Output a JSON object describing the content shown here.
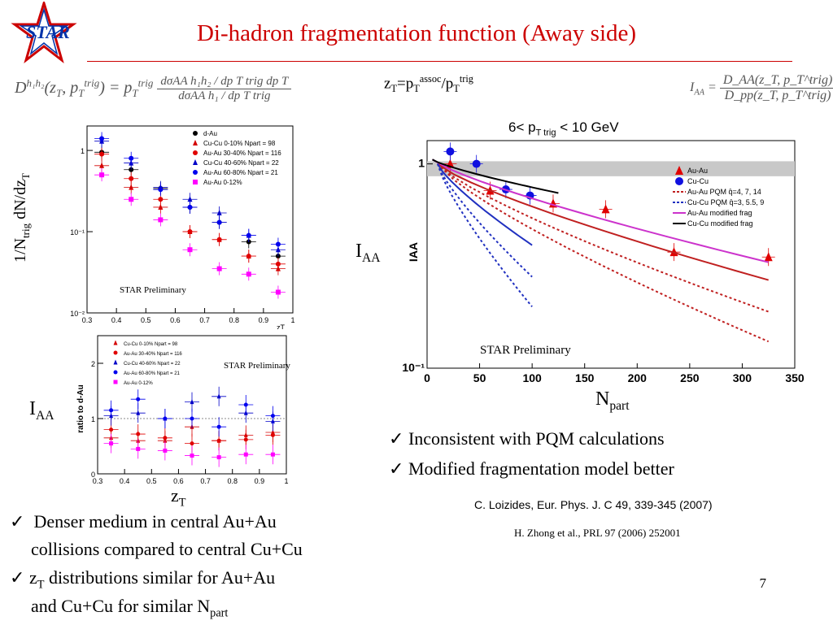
{
  "slide": {
    "title": "Di-hadron fragmentation function (Away side)",
    "logo_text": "STAR",
    "page_number": "7"
  },
  "equations": {
    "D_lhs": "D",
    "D_lhs_sup": "h₁h₂",
    "D_args": "(z",
    "D_args_sub": "T",
    "D_args2": ", p",
    "D_args_sub2": "T",
    "D_args_sup2": "trig",
    "D_args3": ") = p",
    "D_mid_sub": "T",
    "D_mid_sup": "trig",
    "D_num": "dσAA h₁h₂ / dp T trig dp T",
    "D_den": "dσAA h₁ / dp T trig",
    "zT_def": "z",
    "zT_def_sub": "T",
    "zT_def2": "=p",
    "zT_def_sub2": "T",
    "zT_def_sup2": "assoc",
    "zT_def3": "/p",
    "zT_def_sub3": "T",
    "zT_def_sup3": "trig",
    "IAA_lhs": "I",
    "IAA_lhs_sub": "AA",
    "IAA_num": "D_AA(z_T, p_T^trig)",
    "IAA_den": "D_pp(z_T, p_T^trig)"
  },
  "labels": {
    "left_ylabel_main": "1/N",
    "left_ylabel_sub": "trig",
    "left_ylabel_rest": " dN/dz",
    "left_ylabel_sub2": "T",
    "left_iaa": "I",
    "left_iaa_sub": "AA",
    "left_zt": "z",
    "left_zt_sub": "T",
    "right_iaa": "I",
    "right_iaa_sub": "AA",
    "right_npart": "N",
    "right_npart_sub": "part",
    "ptrig_range": "6< p",
    "ptrig_range_sub": "T trig",
    "ptrig_range_rest": " < 10 GeV"
  },
  "bullets": {
    "check": "✓",
    "right1": "Inconsistent with PQM calculations",
    "right2": "Modified fragmentation model better",
    "left1a": "Denser medium in central Au+Au",
    "left1b": "collisions compared to central Cu+Cu",
    "left2a_z": "z",
    "left2a_sub": "T",
    "left2a_rest": " distributions similar for Au+Au",
    "left2b": "and Cu+Cu for similar N",
    "left2b_sub": "part"
  },
  "references": {
    "ref1": "C. Loizides, Eur. Phys. J. C 49, 339-345 (2007)",
    "ref2": "H. Zhong et al.,  PRL 97 (2006) 252001"
  },
  "chart_data": [
    {
      "type": "scatter",
      "ylabel": "1/Ntrig dN/dzT",
      "xlabel": "zT",
      "xlim": [
        0.3,
        1
      ],
      "ylim": [
        0.01,
        2
      ],
      "yscale": "log",
      "x_ticks": [
        "0.3",
        "0.4",
        "0.5",
        "0.6",
        "0.7",
        "0.8",
        "0.9",
        "1"
      ],
      "y_ticks": [
        "10⁻²",
        "10⁻¹",
        "1"
      ],
      "annotation": "STAR Preliminary",
      "legend_position": "top-right",
      "series": [
        {
          "name": "d-Au",
          "color": "#000000",
          "marker": "circle",
          "x": [
            0.35,
            0.45,
            0.55,
            0.65,
            0.75,
            0.85,
            0.95
          ],
          "y": [
            0.95,
            0.58,
            0.34,
            0.2,
            0.13,
            0.075,
            0.05
          ]
        },
        {
          "name": "Cu-Cu 0-10% Npart = 98",
          "color": "#d40000",
          "marker": "triangle",
          "x": [
            0.35,
            0.45,
            0.55,
            0.65,
            0.75,
            0.85,
            0.95
          ],
          "y": [
            0.65,
            0.35,
            0.2,
            0.1,
            0.08,
            0.05,
            0.035
          ]
        },
        {
          "name": "Au-Au 30-40% Npart = 116",
          "color": "#e00000",
          "marker": "circle",
          "x": [
            0.35,
            0.45,
            0.55,
            0.65,
            0.75,
            0.85,
            0.95
          ],
          "y": [
            0.9,
            0.45,
            0.25,
            0.1,
            0.08,
            0.05,
            0.04
          ]
        },
        {
          "name": "Cu-Cu 40-60% Npart = 22",
          "color": "#0000c8",
          "marker": "triangle",
          "x": [
            0.35,
            0.45,
            0.55,
            0.65,
            0.75,
            0.85,
            0.95
          ],
          "y": [
            1.3,
            0.7,
            0.35,
            0.25,
            0.17,
            0.09,
            0.06
          ]
        },
        {
          "name": "Au-Au 60-80% Npart = 21",
          "color": "#0000ee",
          "marker": "circle",
          "x": [
            0.35,
            0.45,
            0.55,
            0.65,
            0.75,
            0.85,
            0.95
          ],
          "y": [
            1.4,
            0.8,
            0.33,
            0.2,
            0.13,
            0.09,
            0.07
          ]
        },
        {
          "name": "Au-Au 0-12%",
          "color": "#ff00ff",
          "marker": "square",
          "x": [
            0.35,
            0.45,
            0.55,
            0.65,
            0.75,
            0.85,
            0.95
          ],
          "y": [
            0.5,
            0.25,
            0.14,
            0.06,
            0.035,
            0.03,
            0.018
          ]
        }
      ]
    },
    {
      "type": "scatter",
      "ylabel": "ratio to d-Au",
      "xlabel": "zT",
      "xlim": [
        0.3,
        1
      ],
      "ylim": [
        0,
        2.5
      ],
      "x_ticks": [
        "0.3",
        "0.4",
        "0.5",
        "0.6",
        "0.7",
        "0.8",
        "0.9",
        "1"
      ],
      "y_ticks": [
        "0",
        "1",
        "2"
      ],
      "annotation": "STAR Preliminary",
      "legend_position": "top-left",
      "series": [
        {
          "name": "Cu-Cu 0-10% Npart = 98",
          "color": "#d40000",
          "marker": "triangle",
          "x": [
            0.35,
            0.45,
            0.55,
            0.65,
            0.75,
            0.85,
            0.95
          ],
          "y": [
            0.65,
            0.6,
            0.6,
            0.85,
            0.6,
            0.7,
            0.75
          ]
        },
        {
          "name": "Au-Au 30-40% Npart = 116",
          "color": "#e00000",
          "marker": "circle",
          "x": [
            0.35,
            0.45,
            0.55,
            0.65,
            0.75,
            0.85,
            0.95
          ],
          "y": [
            0.8,
            0.72,
            0.65,
            0.55,
            0.6,
            0.62,
            0.7
          ]
        },
        {
          "name": "Cu-Cu 40-60% Npart = 22",
          "color": "#0000c8",
          "marker": "triangle",
          "x": [
            0.35,
            0.45,
            0.55,
            0.65,
            0.75,
            0.85,
            0.95
          ],
          "y": [
            1.05,
            1.1,
            1.0,
            1.3,
            1.4,
            1.1,
            0.95
          ]
        },
        {
          "name": "Au-Au 60-80% Npart = 21",
          "color": "#0000ee",
          "marker": "circle",
          "x": [
            0.35,
            0.45,
            0.55,
            0.65,
            0.75,
            0.85,
            0.95
          ],
          "y": [
            1.15,
            1.35,
            1.0,
            1.0,
            0.85,
            1.25,
            1.05
          ]
        },
        {
          "name": "Au-Au 0-12%",
          "color": "#ff00ff",
          "marker": "square",
          "x": [
            0.35,
            0.45,
            0.55,
            0.65,
            0.75,
            0.85,
            0.95
          ],
          "y": [
            0.55,
            0.45,
            0.42,
            0.33,
            0.3,
            0.35,
            0.35
          ]
        }
      ]
    },
    {
      "type": "line",
      "ylabel": "IAA",
      "xlabel": "Npart",
      "xlim": [
        0,
        350
      ],
      "ylim": [
        0.1,
        1.3
      ],
      "yscale": "log",
      "x_ticks": [
        "0",
        "50",
        "100",
        "150",
        "200",
        "250",
        "300",
        "350"
      ],
      "y_ticks": [
        "10⁻¹",
        "1"
      ],
      "annotation": "STAR Preliminary",
      "band": {
        "y_low": 0.87,
        "y_high": 1.03
      },
      "legend_position": "top-right",
      "series": [
        {
          "name": "Au-Au",
          "color": "#e00000",
          "marker": "triangle",
          "x": [
            22,
            60,
            120,
            170,
            235,
            325
          ],
          "y": [
            1.0,
            0.74,
            0.64,
            0.6,
            0.37,
            0.35
          ]
        },
        {
          "name": "Cu-Cu",
          "color": "#1010e0",
          "marker": "circle",
          "x": [
            22,
            47,
            75,
            98
          ],
          "y": [
            1.15,
            1.0,
            0.75,
            0.7
          ]
        },
        {
          "name": "Au-Au PQM  q̂=4, 7, 14",
          "color": "#c02020",
          "style": "solid+dotted",
          "x": [
            10,
            325
          ],
          "y": [
            1.0,
            0.27
          ]
        },
        {
          "name": "Cu-Cu PQM  q̂=3, 5.5, 9",
          "color": "#2030c0",
          "style": "solid+dotted",
          "x": [
            10,
            100
          ],
          "y": [
            1.0,
            0.4
          ]
        },
        {
          "name": "Au-Au modified frag",
          "color": "#cc33cc",
          "x": [
            5,
            325
          ],
          "y": [
            1.05,
            0.33
          ]
        },
        {
          "name": "Cu-Cu modified frag",
          "color": "#000000",
          "x": [
            5,
            125
          ],
          "y": [
            1.05,
            0.72
          ]
        }
      ]
    }
  ]
}
